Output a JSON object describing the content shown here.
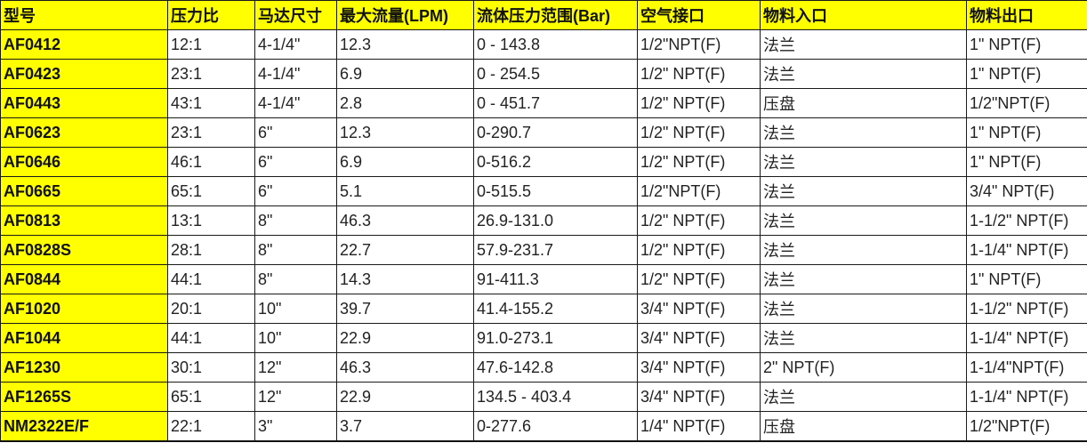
{
  "headers": [
    "型号",
    "压力比",
    "马达尺寸",
    "最大流量(LPM)",
    "流体压力范围(Bar)",
    "空气接口",
    "物料入口",
    "物料出口"
  ],
  "highlight_color": "#ffff00",
  "rows": [
    [
      "AF0412",
      "12:1",
      "4-1/4\"",
      "12.3",
      "0 - 143.8",
      "1/2\"NPT(F)",
      "法兰",
      "1\" NPT(F)"
    ],
    [
      "AF0423",
      "23:1",
      "4-1/4\"",
      "6.9",
      "0 - 254.5",
      "1/2\" NPT(F)",
      "法兰",
      "1\" NPT(F)"
    ],
    [
      "AF0443",
      "43:1",
      "4-1/4\"",
      "2.8",
      "0 - 451.7",
      "1/2\" NPT(F)",
      "压盘",
      "1/2\"NPT(F)"
    ],
    [
      "AF0623",
      "23:1",
      "6\"",
      "12.3",
      "0-290.7",
      "1/2\" NPT(F)",
      "法兰",
      "1\" NPT(F)"
    ],
    [
      "AF0646",
      "46:1",
      "6\"",
      "6.9",
      "0-516.2",
      "1/2\" NPT(F)",
      "法兰",
      "1\" NPT(F)"
    ],
    [
      "AF0665",
      "65:1",
      "6\"",
      "5.1",
      "0-515.5",
      "1/2\"NPT(F)",
      "法兰",
      "3/4\" NPT(F)"
    ],
    [
      "AF0813",
      "13:1",
      "8\"",
      "46.3",
      "26.9-131.0",
      "1/2\" NPT(F)",
      "法兰",
      "1-1/2\" NPT(F)"
    ],
    [
      "AF0828S",
      "28:1",
      "8\"",
      "22.7",
      "57.9-231.7",
      "1/2\" NPT(F)",
      "法兰",
      "1-1/4\" NPT(F)"
    ],
    [
      "AF0844",
      "44:1",
      "8\"",
      "14.3",
      "91-411.3",
      "1/2\" NPT(F)",
      "法兰",
      "1\" NPT(F)"
    ],
    [
      "AF1020",
      "20:1",
      "10\"",
      "39.7",
      "41.4-155.2",
      "3/4\" NPT(F)",
      "法兰",
      "1-1/2\" NPT(F)"
    ],
    [
      "AF1044",
      "44:1",
      "10\"",
      "22.9",
      "91.0-273.1",
      "3/4\" NPT(F)",
      "法兰",
      "1-1/4\" NPT(F)"
    ],
    [
      "AF1230",
      "30:1",
      "12\"",
      "46.3",
      "47.6-142.8",
      "3/4\" NPT(F)",
      "2\" NPT(F)",
      "1-1/4\"NPT(F)"
    ],
    [
      "AF1265S",
      "65:1",
      "12\"",
      "22.9",
      "134.5 - 403.4",
      "3/4\" NPT(F)",
      "法兰",
      "1-1/4\" NPT(F)"
    ],
    [
      "NM2322E/F",
      "22:1",
      "3\"",
      "3.7",
      "0-277.6",
      "1/4\" NPT(F)",
      "压盘",
      "1/2\"NPT(F)"
    ]
  ]
}
